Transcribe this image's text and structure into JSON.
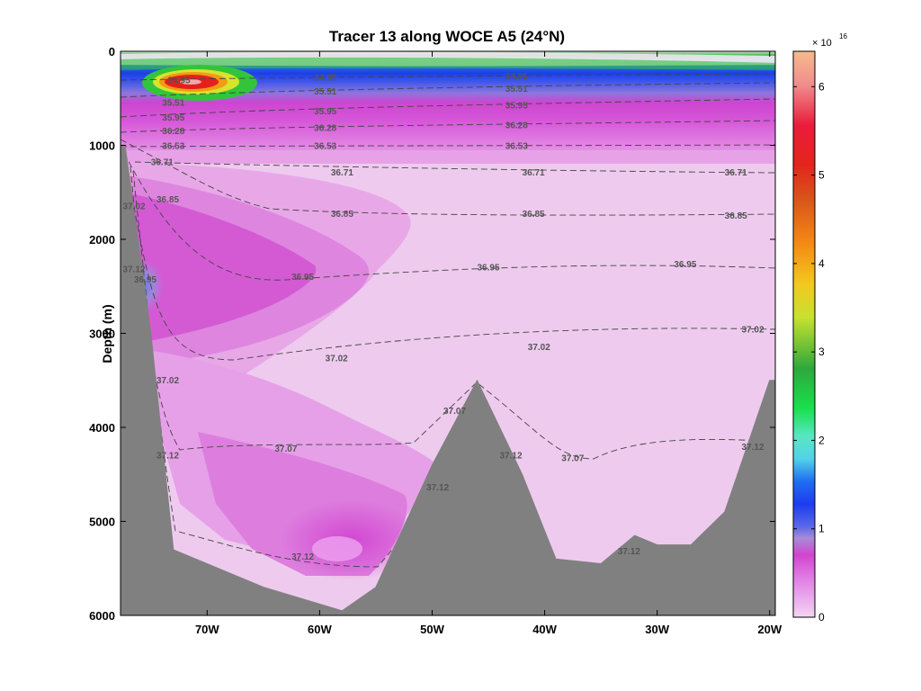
{
  "chart_data": {
    "type": "contour",
    "title": "Tracer 13 along WOCE A5 (24°N)",
    "xlabel": "",
    "ylabel": "Depth (m)",
    "x_ticks": [
      "70W",
      "60W",
      "50W",
      "40W",
      "30W",
      "20W"
    ],
    "x_tick_values": [
      -70,
      -60,
      -50,
      -40,
      -30,
      -20
    ],
    "y_ticks": [
      "0",
      "1000",
      "2000",
      "3000",
      "4000",
      "5000",
      "6000"
    ],
    "y_tick_values": [
      0,
      1000,
      2000,
      3000,
      4000,
      5000,
      6000
    ],
    "xlim": [
      -77.7,
      -19.5
    ],
    "ylim": [
      6000,
      0
    ],
    "colorbar": {
      "multiplier_base": "× 10",
      "multiplier_exponent": "16",
      "ticks": [
        "0",
        "1",
        "2",
        "3",
        "4",
        "5",
        "6"
      ],
      "tick_values": [
        0,
        1,
        2,
        3,
        4,
        5,
        6
      ],
      "range": [
        0,
        6.4
      ]
    },
    "bathymetry_depth_m": [
      [
        -77.3,
        1000
      ],
      [
        -75,
        3000
      ],
      [
        -73,
        5300
      ],
      [
        -65,
        5700
      ],
      [
        -58,
        5950
      ],
      [
        -55,
        5700
      ],
      [
        -50,
        4400
      ],
      [
        -46,
        3500
      ],
      [
        -42,
        4500
      ],
      [
        -39,
        5400
      ],
      [
        -35,
        5450
      ],
      [
        -32,
        5150
      ],
      [
        -30,
        5250
      ],
      [
        -27,
        5250
      ],
      [
        -24,
        4900
      ],
      [
        -20,
        3500
      ]
    ],
    "salinity_contour_labels": [
      {
        "text": "34.95",
        "lon": -72.5,
        "depth": 310
      },
      {
        "text": "34.95",
        "lon": -59.5,
        "depth": 280
      },
      {
        "text": "34.95",
        "lon": -42.5,
        "depth": 270
      },
      {
        "text": "35.51",
        "lon": -73,
        "depth": 550
      },
      {
        "text": "35.51",
        "lon": -59.5,
        "depth": 430
      },
      {
        "text": "35.51",
        "lon": -42.5,
        "depth": 400
      },
      {
        "text": "35.95",
        "lon": -73,
        "depth": 710
      },
      {
        "text": "35.95",
        "lon": -59.5,
        "depth": 640
      },
      {
        "text": "35.95",
        "lon": -42.5,
        "depth": 580
      },
      {
        "text": "36.28",
        "lon": -73,
        "depth": 850
      },
      {
        "text": "36.28",
        "lon": -59.5,
        "depth": 820
      },
      {
        "text": "36.28",
        "lon": -42.5,
        "depth": 790
      },
      {
        "text": "36.53",
        "lon": -73,
        "depth": 1010
      },
      {
        "text": "36.53",
        "lon": -59.5,
        "depth": 1010
      },
      {
        "text": "36.53",
        "lon": -42.5,
        "depth": 1010
      },
      {
        "text": "36.71",
        "lon": -74,
        "depth": 1180
      },
      {
        "text": "36.71",
        "lon": -58,
        "depth": 1290
      },
      {
        "text": "36.71",
        "lon": -41,
        "depth": 1290
      },
      {
        "text": "36.71",
        "lon": -23,
        "depth": 1290
      },
      {
        "text": "36.85",
        "lon": -73.5,
        "depth": 1580
      },
      {
        "text": "36.85",
        "lon": -58,
        "depth": 1730
      },
      {
        "text": "36.85",
        "lon": -41,
        "depth": 1730
      },
      {
        "text": "36.85",
        "lon": -23,
        "depth": 1750
      },
      {
        "text": "36.95",
        "lon": -75.5,
        "depth": 2430
      },
      {
        "text": "36.95",
        "lon": -61.5,
        "depth": 2400
      },
      {
        "text": "36.95",
        "lon": -45,
        "depth": 2300
      },
      {
        "text": "36.95",
        "lon": -27.5,
        "depth": 2270
      },
      {
        "text": "37.02",
        "lon": -76.5,
        "depth": 1650
      },
      {
        "text": "37.02",
        "lon": -58.5,
        "depth": 3270
      },
      {
        "text": "37.02",
        "lon": -40.5,
        "depth": 3150
      },
      {
        "text": "37.02",
        "lon": -21.5,
        "depth": 2960
      },
      {
        "text": "37.02",
        "lon": -73.5,
        "depth": 3500
      },
      {
        "text": "37.07",
        "lon": -63,
        "depth": 4230
      },
      {
        "text": "37.07",
        "lon": -48,
        "depth": 3830
      },
      {
        "text": "37.07",
        "lon": -37.5,
        "depth": 4330
      },
      {
        "text": "37.12",
        "lon": -76.5,
        "depth": 2320
      },
      {
        "text": "37.12",
        "lon": -73.5,
        "depth": 4300
      },
      {
        "text": "37.12",
        "lon": -61.5,
        "depth": 5380
      },
      {
        "text": "37.12",
        "lon": -49.5,
        "depth": 4640
      },
      {
        "text": "37.12",
        "lon": -43,
        "depth": 4300
      },
      {
        "text": "37.12",
        "lon": -32.5,
        "depth": 5320
      },
      {
        "text": "37.12",
        "lon": -21.5,
        "depth": 4210
      }
    ]
  }
}
